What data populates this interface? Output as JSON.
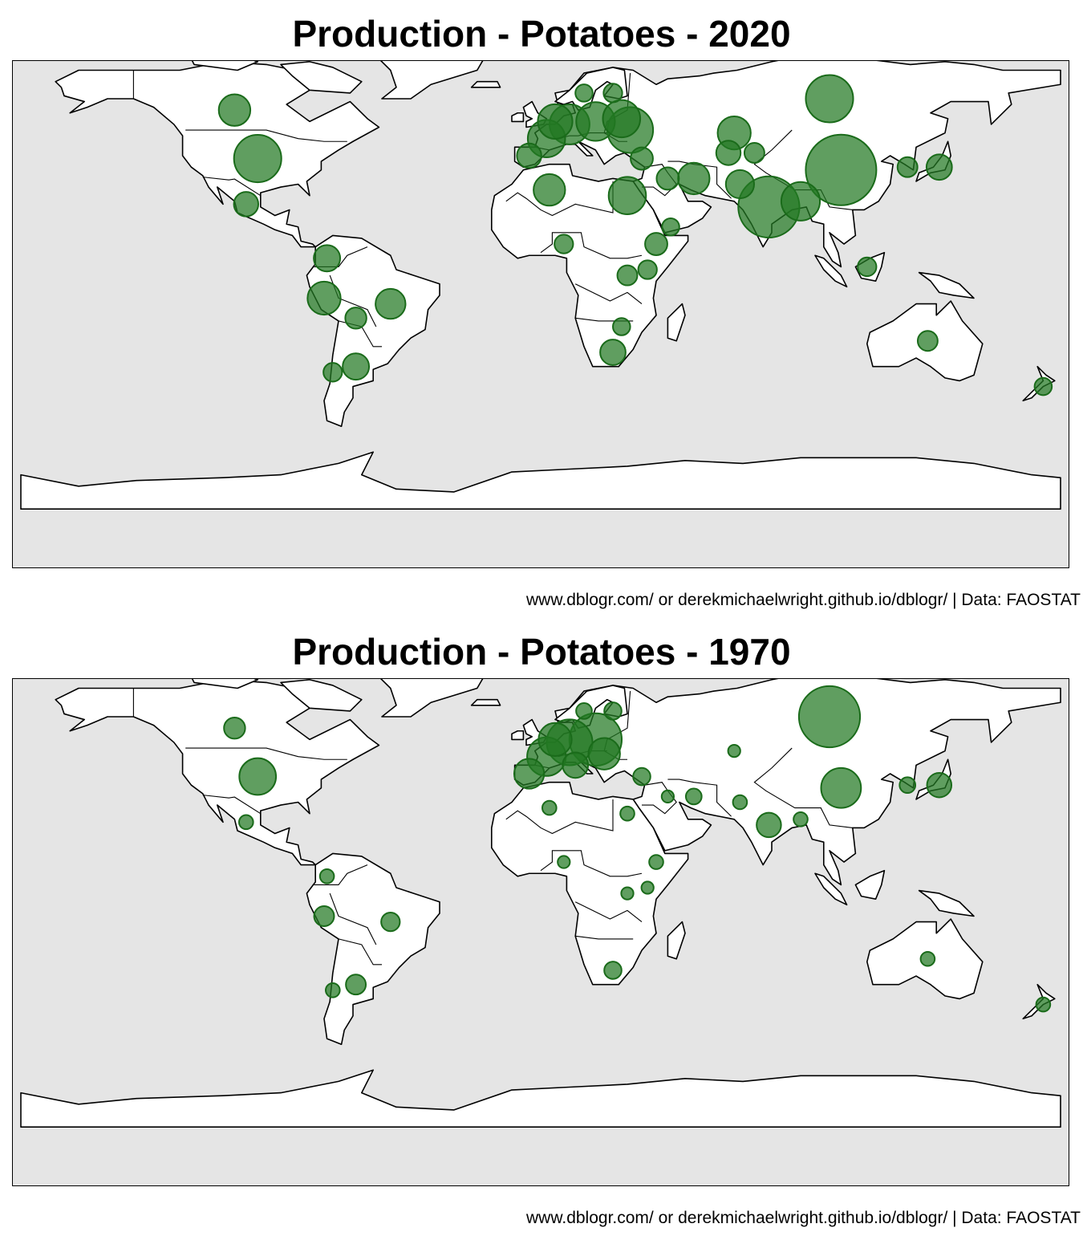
{
  "colors": {
    "ocean": "#e5e5e5",
    "land": "#ffffff",
    "bubble": "#2e7d2e"
  },
  "panels": [
    {
      "title": "Production - Potatoes - 2020",
      "caption": "www.dblogr.com/ or derekmichaelwright.github.io/dblogr/ | Data: FAOSTAT",
      "relative_production": [
        {
          "lon": 104,
          "lat": 35,
          "size": 1.0
        },
        {
          "lon": 79,
          "lat": 22,
          "size": 0.75
        },
        {
          "lon": 100,
          "lat": 60,
          "size": 0.45
        },
        {
          "lon": 31,
          "lat": 49,
          "size": 0.42
        },
        {
          "lon": -98,
          "lat": 39,
          "size": 0.45
        },
        {
          "lon": 28,
          "lat": 53,
          "size": 0.28
        },
        {
          "lon": 10,
          "lat": 51,
          "size": 0.32
        },
        {
          "lon": 19,
          "lat": 52,
          "size": 0.3
        },
        {
          "lon": 2,
          "lat": 46,
          "size": 0.28
        },
        {
          "lon": 5,
          "lat": 52,
          "size": 0.24
        },
        {
          "lon": 90,
          "lat": 24,
          "size": 0.3
        },
        {
          "lon": 30,
          "lat": 26,
          "size": 0.28
        },
        {
          "lon": 53,
          "lat": 32,
          "size": 0.2
        },
        {
          "lon": 67,
          "lat": 48,
          "size": 0.22
        },
        {
          "lon": -106,
          "lat": 56,
          "size": 0.2
        },
        {
          "lon": -75,
          "lat": -10,
          "size": 0.22
        },
        {
          "lon": -52,
          "lat": -12,
          "size": 0.18
        },
        {
          "lon": 3,
          "lat": 28,
          "size": 0.2
        },
        {
          "lon": 69,
          "lat": 30,
          "size": 0.16
        },
        {
          "lon": 138,
          "lat": 36,
          "size": 0.13
        },
        {
          "lon": -102,
          "lat": 23,
          "size": 0.12
        },
        {
          "lon": -64,
          "lat": -34,
          "size": 0.14
        },
        {
          "lon": 25,
          "lat": -29,
          "size": 0.13
        },
        {
          "lon": -4,
          "lat": 40,
          "size": 0.12
        },
        {
          "lon": -74,
          "lat": 4,
          "size": 0.14
        },
        {
          "lon": 65,
          "lat": 41,
          "size": 0.12
        },
        {
          "lon": 44,
          "lat": 32,
          "size": 0.1
        },
        {
          "lon": 127,
          "lat": 36,
          "size": 0.08
        },
        {
          "lon": 35,
          "lat": 39,
          "size": 0.1
        },
        {
          "lon": 134,
          "lat": -25,
          "size": 0.08
        },
        {
          "lon": -64,
          "lat": -17,
          "size": 0.09
        },
        {
          "lon": 40,
          "lat": 9,
          "size": 0.1
        },
        {
          "lon": 74,
          "lat": 41,
          "size": 0.08
        },
        {
          "lon": 113,
          "lat": 1,
          "size": 0.07
        },
        {
          "lon": 30,
          "lat": -2,
          "size": 0.08
        },
        {
          "lon": 37,
          "lat": 0,
          "size": 0.07
        },
        {
          "lon": 8,
          "lat": 9,
          "size": 0.07
        },
        {
          "lon": 25,
          "lat": 62,
          "size": 0.07
        },
        {
          "lon": 15,
          "lat": 62,
          "size": 0.06
        },
        {
          "lon": 174,
          "lat": -41,
          "size": 0.06
        },
        {
          "lon": -72,
          "lat": -36,
          "size": 0.07
        },
        {
          "lon": 45,
          "lat": 15,
          "size": 0.06
        },
        {
          "lon": 28,
          "lat": -20,
          "size": 0.06
        }
      ]
    },
    {
      "title": "Production - Potatoes - 1970",
      "caption": "www.dblogr.com/ or derekmichaelwright.github.io/dblogr/ | Data: FAOSTAT",
      "relative_production": [
        {
          "lon": 100,
          "lat": 60,
          "size": 0.75
        },
        {
          "lon": 19,
          "lat": 52,
          "size": 0.55
        },
        {
          "lon": 10,
          "lat": 51,
          "size": 0.42
        },
        {
          "lon": 2,
          "lat": 46,
          "size": 0.3
        },
        {
          "lon": 104,
          "lat": 35,
          "size": 0.32
        },
        {
          "lon": -98,
          "lat": 39,
          "size": 0.27
        },
        {
          "lon": 5,
          "lat": 52,
          "size": 0.22
        },
        {
          "lon": 22,
          "lat": 47,
          "size": 0.2
        },
        {
          "lon": -4,
          "lat": 40,
          "size": 0.18
        },
        {
          "lon": 79,
          "lat": 22,
          "size": 0.12
        },
        {
          "lon": 12,
          "lat": 43,
          "size": 0.13
        },
        {
          "lon": 138,
          "lat": 36,
          "size": 0.12
        },
        {
          "lon": -106,
          "lat": 56,
          "size": 0.09
        },
        {
          "lon": -75,
          "lat": -10,
          "size": 0.08
        },
        {
          "lon": -64,
          "lat": -34,
          "size": 0.08
        },
        {
          "lon": -52,
          "lat": -12,
          "size": 0.07
        },
        {
          "lon": 25,
          "lat": -29,
          "size": 0.06
        },
        {
          "lon": 25,
          "lat": 62,
          "size": 0.06
        },
        {
          "lon": 15,
          "lat": 62,
          "size": 0.05
        },
        {
          "lon": 35,
          "lat": 39,
          "size": 0.06
        },
        {
          "lon": 53,
          "lat": 32,
          "size": 0.05
        },
        {
          "lon": 127,
          "lat": 36,
          "size": 0.05
        },
        {
          "lon": -102,
          "lat": 23,
          "size": 0.04
        },
        {
          "lon": 134,
          "lat": -25,
          "size": 0.04
        },
        {
          "lon": 174,
          "lat": -41,
          "size": 0.04
        },
        {
          "lon": 3,
          "lat": 28,
          "size": 0.04
        },
        {
          "lon": -74,
          "lat": 4,
          "size": 0.04
        },
        {
          "lon": -72,
          "lat": -36,
          "size": 0.04
        },
        {
          "lon": 30,
          "lat": 26,
          "size": 0.04
        },
        {
          "lon": 40,
          "lat": 9,
          "size": 0.04
        },
        {
          "lon": 90,
          "lat": 24,
          "size": 0.04
        },
        {
          "lon": 69,
          "lat": 30,
          "size": 0.04
        },
        {
          "lon": 44,
          "lat": 32,
          "size": 0.03
        },
        {
          "lon": 67,
          "lat": 48,
          "size": 0.03
        },
        {
          "lon": 8,
          "lat": 9,
          "size": 0.03
        },
        {
          "lon": 30,
          "lat": -2,
          "size": 0.03
        },
        {
          "lon": 37,
          "lat": 0,
          "size": 0.03
        }
      ]
    }
  ]
}
